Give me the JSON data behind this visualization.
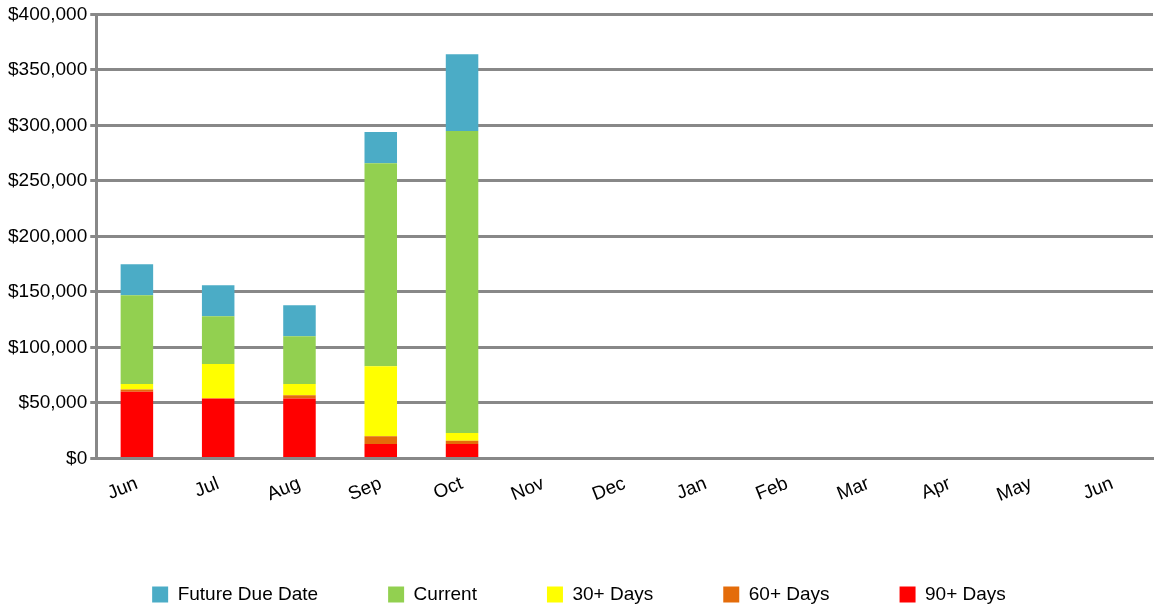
{
  "chart_data": {
    "type": "bar",
    "stacked": true,
    "categories": [
      "Jun",
      "Jul",
      "Aug",
      "Sep",
      "Oct",
      "Nov",
      "Dec",
      "Jan",
      "Feb",
      "Mar",
      "Apr",
      "May",
      "Jun"
    ],
    "series": [
      {
        "name": "90+ Days",
        "color": "#ff0000",
        "values": [
          60000,
          54000,
          54000,
          13000,
          13000,
          null,
          null,
          null,
          null,
          null,
          null,
          null,
          null
        ]
      },
      {
        "name": "60+ Days",
        "color": "#e46c0a",
        "values": [
          2000,
          0,
          3000,
          7000,
          3000,
          null,
          null,
          null,
          null,
          null,
          null,
          null,
          null
        ]
      },
      {
        "name": "30+ Days",
        "color": "#ffff00",
        "values": [
          5000,
          31000,
          10000,
          63000,
          7000,
          null,
          null,
          null,
          null,
          null,
          null,
          null,
          null
        ]
      },
      {
        "name": "Current",
        "color": "#92d050",
        "values": [
          80000,
          43000,
          43000,
          183000,
          272000,
          null,
          null,
          null,
          null,
          null,
          null,
          null,
          null
        ]
      },
      {
        "name": "Future Due Date",
        "color": "#4bacc6",
        "values": [
          28000,
          28000,
          28000,
          28000,
          69000,
          null,
          null,
          null,
          null,
          null,
          null,
          null,
          null
        ]
      }
    ],
    "ylim": [
      0,
      400000
    ],
    "yticks": [
      {
        "value": 0,
        "label": "$0"
      },
      {
        "value": 50000,
        "label": "$50,000"
      },
      {
        "value": 100000,
        "label": "$100,000"
      },
      {
        "value": 150000,
        "label": "$150,000"
      },
      {
        "value": 200000,
        "label": "$200,000"
      },
      {
        "value": 250000,
        "label": "$250,000"
      },
      {
        "value": 300000,
        "label": "$300,000"
      },
      {
        "value": 350000,
        "label": "$350,000"
      },
      {
        "value": 400000,
        "label": "$400,000"
      }
    ],
    "grid": "y",
    "legend": "bottom"
  }
}
